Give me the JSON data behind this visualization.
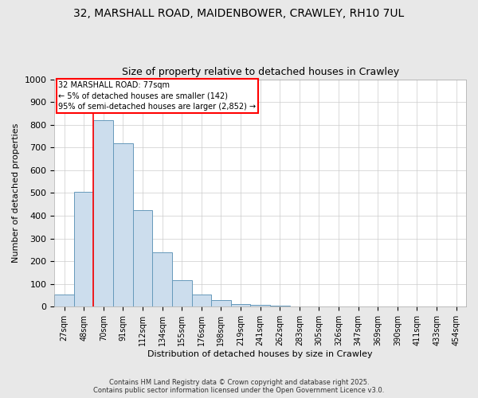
{
  "title_line1": "32, MARSHALL ROAD, MAIDENBOWER, CRAWLEY, RH10 7UL",
  "title_line2": "Size of property relative to detached houses in Crawley",
  "xlabel": "Distribution of detached houses by size in Crawley",
  "ylabel": "Number of detached properties",
  "bar_color": "#ccdded",
  "bar_edge_color": "#6699bb",
  "categories": [
    "27sqm",
    "48sqm",
    "70sqm",
    "91sqm",
    "112sqm",
    "134sqm",
    "155sqm",
    "176sqm",
    "198sqm",
    "219sqm",
    "241sqm",
    "262sqm",
    "283sqm",
    "305sqm",
    "326sqm",
    "347sqm",
    "369sqm",
    "390sqm",
    "411sqm",
    "433sqm",
    "454sqm"
  ],
  "values": [
    55,
    505,
    820,
    720,
    425,
    240,
    115,
    55,
    28,
    12,
    7,
    4,
    2,
    1,
    0,
    0,
    0,
    0,
    0,
    0,
    0
  ],
  "ylim": [
    0,
    1000
  ],
  "yticks": [
    0,
    100,
    200,
    300,
    400,
    500,
    600,
    700,
    800,
    900,
    1000
  ],
  "annotation_title": "32 MARSHALL ROAD: 77sqm",
  "annotation_line2": "← 5% of detached houses are smaller (142)",
  "annotation_line3": "95% of semi-detached houses are larger (2,852) →",
  "vline_x_index": 1.5,
  "footer_line1": "Contains HM Land Registry data © Crown copyright and database right 2025.",
  "footer_line2": "Contains public sector information licensed under the Open Government Licence v3.0.",
  "background_color": "#e8e8e8",
  "plot_background": "#ffffff",
  "grid_color": "#cccccc"
}
